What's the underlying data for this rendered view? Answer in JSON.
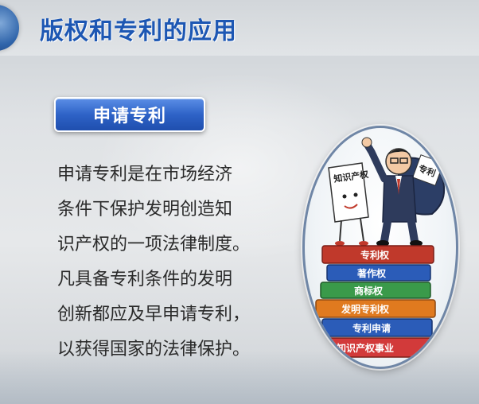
{
  "title": "版权和专利的应用",
  "section_button": "申请专利",
  "body_lines": [
    "申请专利是在市场经济",
    "条件下保护发明创造知",
    "识产权的一项法律制度。",
    "凡具备专利条件的发明",
    "创新都应及早申请专利，",
    "以获得国家的法律保护。"
  ],
  "illustration": {
    "paper_label": "知识产权",
    "bag_label": "专利",
    "books": [
      {
        "label": "专利权",
        "color": "#c0392b"
      },
      {
        "label": "著作权",
        "color": "#2b5cb8"
      },
      {
        "label": "商标权",
        "color": "#3a9a4a"
      },
      {
        "label": "发明专利权",
        "color": "#e07a1f"
      },
      {
        "label": "专利申请",
        "color": "#2b5cb8"
      },
      {
        "label": "知识产权事业",
        "color": "#d23a3a"
      }
    ]
  },
  "colors": {
    "title": "#1d57b3",
    "button_bg": "#2e63c7",
    "body_text": "#2a2a2a"
  }
}
